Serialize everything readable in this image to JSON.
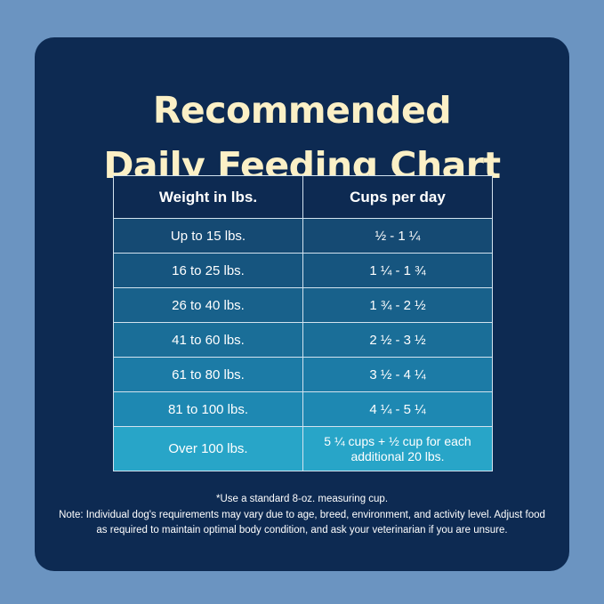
{
  "title": {
    "line1": "Recommended",
    "line2": "Daily Feeding Chart"
  },
  "table": {
    "headers": [
      "Weight in lbs.",
      "Cups per day"
    ],
    "rows": [
      {
        "weight": "Up to 15 lbs.",
        "cups": "½ - 1 ¼",
        "color": "#154a73"
      },
      {
        "weight": "16 to 25 lbs.",
        "cups": "1 ¼ - 1 ¾",
        "color": "#16557f"
      },
      {
        "weight": "26 to 40 lbs.",
        "cups": "1 ¾ - 2 ½",
        "color": "#18618b"
      },
      {
        "weight": "41 to 60 lbs.",
        "cups": "2 ½ - 3 ½",
        "color": "#1a6e98"
      },
      {
        "weight": "61 to 80 lbs.",
        "cups": "3 ½ - 4 ¼",
        "color": "#1c7ba6"
      },
      {
        "weight": "81 to 100 lbs.",
        "cups": "4 ¼ - 5 ¼",
        "color": "#1e88b2"
      },
      {
        "weight": "Over 100 lbs.",
        "cups": "5 ¼ cups  + ½ cup for each additional 20 lbs.",
        "color": "#28a5c8"
      }
    ]
  },
  "footnote": {
    "line1": "*Use a standard 8-oz. measuring cup.",
    "line2": "Note: Individual dog's requirements may vary due to age, breed, environment, and activity level. Adjust food as required to maintain optimal body condition, and ask your veterinarian if you are unsure."
  },
  "colors": {
    "background": "#6b94c1",
    "card": "#0d2a52",
    "title": "#fbf0c6"
  }
}
